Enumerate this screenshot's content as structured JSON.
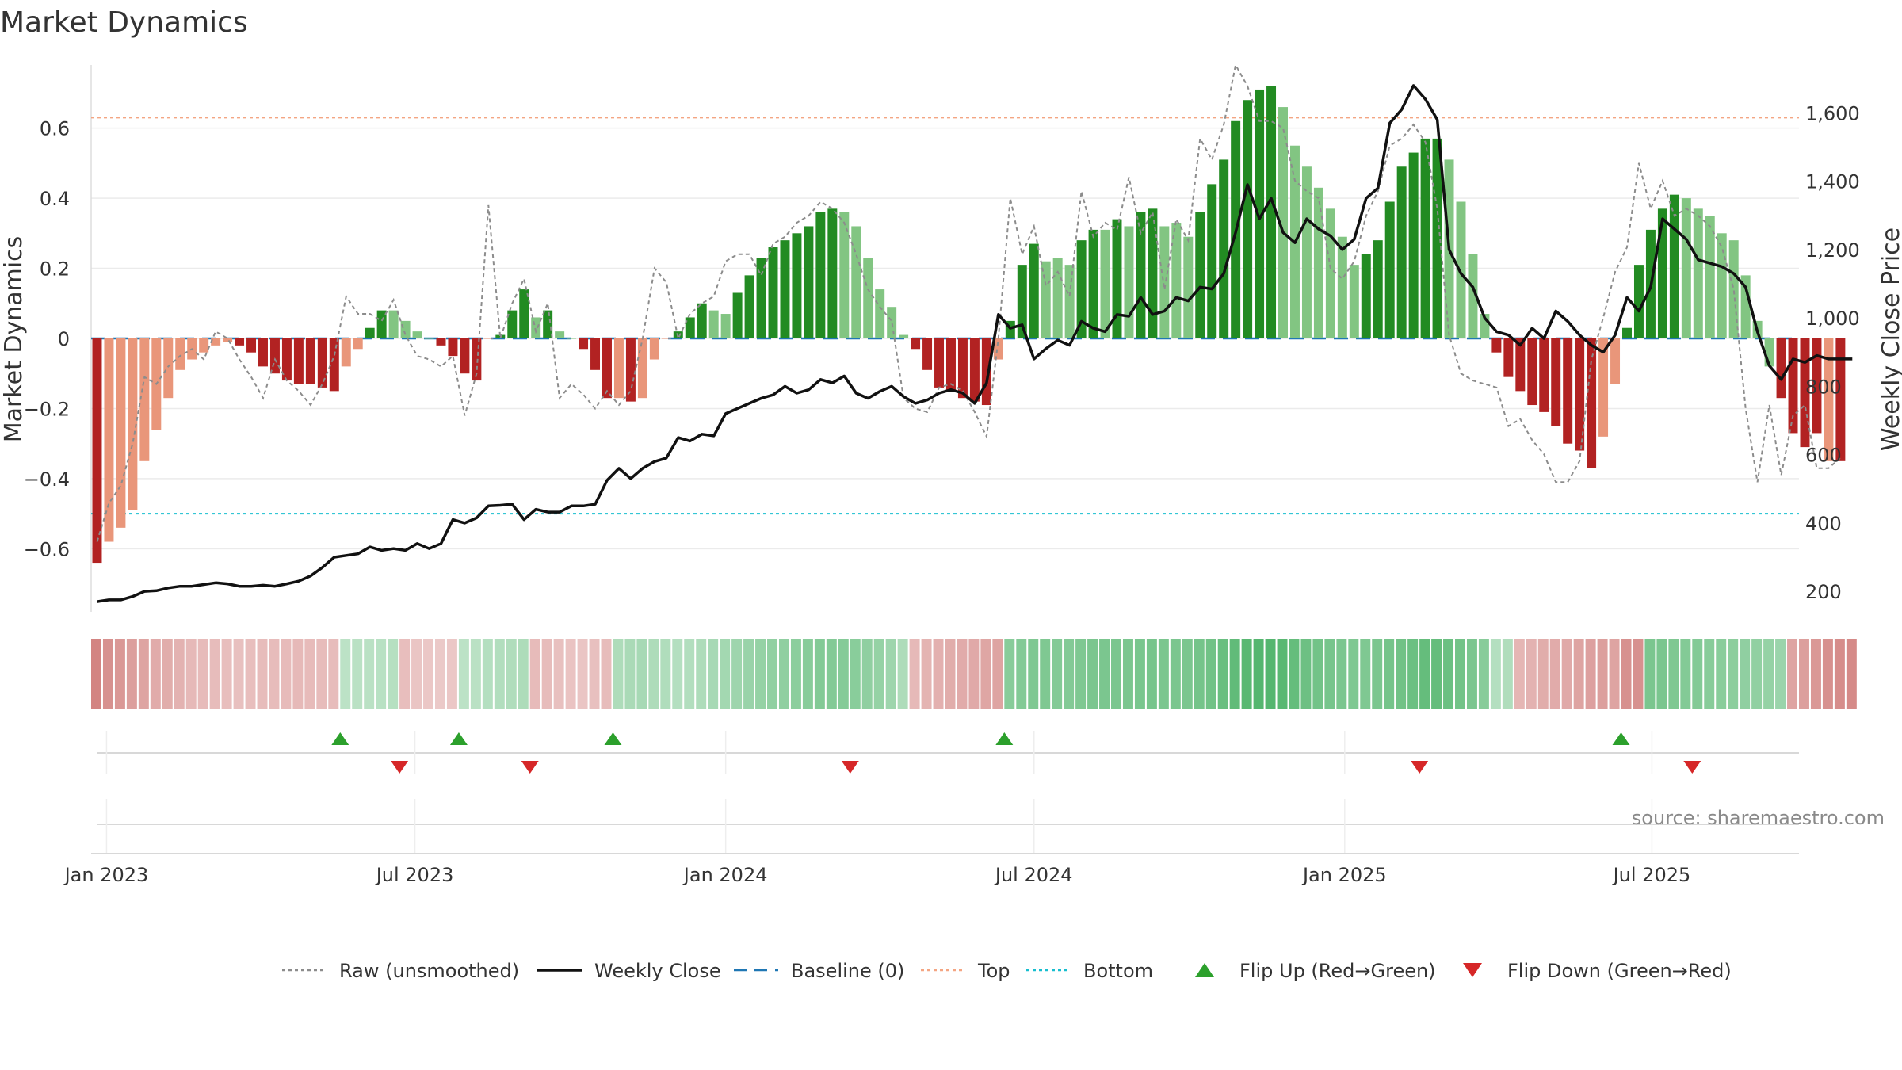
{
  "chart_data": {
    "type": "bar",
    "title": "Market Dynamics",
    "ylabel_left": "Market Dynamics",
    "ylabel_right": "Weekly Close Price",
    "source": "source: sharemaestro.com",
    "ylim_left": [
      -0.78,
      0.78
    ],
    "ylim_right": [
      140,
      1740
    ],
    "yticks_left": [
      -0.6,
      -0.4,
      -0.2,
      0,
      0.2,
      0.4,
      0.6
    ],
    "yticks_left_labels": [
      "−0.6",
      "−0.4",
      "−0.2",
      "0",
      "0.2",
      "0.4",
      "0.6"
    ],
    "yticks_right": [
      200,
      400,
      600,
      800,
      1000,
      1200,
      1400,
      1600
    ],
    "yticks_right_labels": [
      "200",
      "400",
      "600",
      "800",
      "1,000",
      "1,200",
      "1,400",
      "1,600"
    ],
    "x_ticks": [
      {
        "label": "Jan 2023",
        "week": 1.3
      },
      {
        "label": "Jul 2023",
        "week": 27.3
      },
      {
        "label": "Jan 2024",
        "week": 53.5
      },
      {
        "label": "Jul 2024",
        "week": 79.5
      },
      {
        "label": "Jan 2025",
        "week": 105.7
      },
      {
        "label": "Jul 2025",
        "week": 131.6
      }
    ],
    "top_level": 0.63,
    "bottom_level": -0.5,
    "baseline": 0,
    "weeks": 144,
    "momentum": [
      -0.64,
      -0.58,
      -0.54,
      -0.49,
      -0.35,
      -0.26,
      -0.17,
      -0.09,
      -0.06,
      -0.04,
      -0.02,
      -0.01,
      -0.02,
      -0.04,
      -0.08,
      -0.1,
      -0.12,
      -0.13,
      -0.13,
      -0.14,
      -0.15,
      -0.08,
      -0.03,
      0.03,
      0.08,
      0.08,
      0.05,
      0.02,
      0.0,
      -0.02,
      -0.05,
      -0.1,
      -0.12,
      0.0,
      0.01,
      0.08,
      0.14,
      0.06,
      0.08,
      0.02,
      0.0,
      -0.03,
      -0.09,
      -0.17,
      -0.17,
      -0.18,
      -0.17,
      -0.06,
      0.0,
      0.02,
      0.06,
      0.1,
      0.08,
      0.07,
      0.13,
      0.18,
      0.23,
      0.26,
      0.28,
      0.3,
      0.32,
      0.36,
      0.37,
      0.36,
      0.32,
      0.23,
      0.14,
      0.09,
      0.01,
      -0.03,
      -0.09,
      -0.14,
      -0.15,
      -0.17,
      -0.18,
      -0.19,
      -0.06,
      0.05,
      0.21,
      0.27,
      0.22,
      0.23,
      0.21,
      0.28,
      0.31,
      0.31,
      0.34,
      0.32,
      0.36,
      0.37,
      0.32,
      0.33,
      0.29,
      0.36,
      0.44,
      0.51,
      0.62,
      0.68,
      0.71,
      0.72,
      0.66,
      0.55,
      0.49,
      0.43,
      0.37,
      0.29,
      0.21,
      0.24,
      0.28,
      0.39,
      0.49,
      0.53,
      0.57,
      0.57,
      0.51,
      0.39,
      0.24,
      0.07,
      -0.04,
      -0.11,
      -0.15,
      -0.19,
      -0.21,
      -0.25,
      -0.3,
      -0.32,
      -0.37,
      -0.28,
      -0.13,
      0.03,
      0.21,
      0.31,
      0.37,
      0.41,
      0.4,
      0.37,
      0.35,
      0.3,
      0.28,
      0.18,
      0.05,
      -0.08,
      -0.17,
      -0.27,
      -0.31,
      -0.27,
      -0.35,
      -0.35
    ],
    "colors": [
      "dark-red",
      "light-red",
      "light-red",
      "light-red",
      "light-red",
      "light-red",
      "light-red",
      "light-red",
      "light-red",
      "light-red",
      "light-red",
      "light-red",
      "dark-red",
      "dark-red",
      "dark-red",
      "dark-red",
      "dark-red",
      "dark-red",
      "dark-red",
      "dark-red",
      "dark-red",
      "light-red",
      "light-red",
      "dark-green",
      "dark-green",
      "light-green",
      "light-green",
      "light-green",
      "light-green",
      "dark-red",
      "dark-red",
      "dark-red",
      "dark-red",
      "light-red",
      "dark-green",
      "dark-green",
      "dark-green",
      "light-green",
      "dark-green",
      "light-green",
      "light-green",
      "dark-red",
      "dark-red",
      "dark-red",
      "light-red",
      "dark-red",
      "light-red",
      "light-red",
      "light-red",
      "dark-green",
      "dark-green",
      "dark-green",
      "light-green",
      "light-green",
      "dark-green",
      "dark-green",
      "dark-green",
      "dark-green",
      "dark-green",
      "dark-green",
      "dark-green",
      "dark-green",
      "dark-green",
      "light-green",
      "light-green",
      "light-green",
      "light-green",
      "light-green",
      "light-green",
      "dark-red",
      "dark-red",
      "dark-red",
      "dark-red",
      "dark-red",
      "dark-red",
      "dark-red",
      "light-red",
      "dark-green",
      "dark-green",
      "dark-green",
      "light-green",
      "light-green",
      "light-green",
      "dark-green",
      "dark-green",
      "light-green",
      "dark-green",
      "light-green",
      "dark-green",
      "dark-green",
      "light-green",
      "light-green",
      "light-green",
      "dark-green",
      "dark-green",
      "dark-green",
      "dark-green",
      "dark-green",
      "dark-green",
      "dark-green",
      "light-green",
      "light-green",
      "light-green",
      "light-green",
      "light-green",
      "light-green",
      "light-green",
      "dark-green",
      "dark-green",
      "dark-green",
      "dark-green",
      "dark-green",
      "dark-green",
      "dark-green",
      "light-green",
      "light-green",
      "light-green",
      "light-green",
      "dark-red",
      "dark-red",
      "dark-red",
      "dark-red",
      "dark-red",
      "dark-red",
      "dark-red",
      "dark-red",
      "dark-red",
      "light-red",
      "light-red",
      "dark-green",
      "dark-green",
      "dark-green",
      "dark-green",
      "dark-green",
      "light-green",
      "light-green",
      "light-green",
      "light-green",
      "light-green",
      "light-green",
      "light-green",
      "light-green",
      "dark-red",
      "dark-red",
      "dark-red",
      "dark-red",
      "light-red",
      "dark-red",
      "light-red"
    ],
    "raw": [
      -0.58,
      -0.47,
      -0.42,
      -0.3,
      -0.11,
      -0.13,
      -0.08,
      -0.05,
      -0.03,
      -0.06,
      0.02,
      0.0,
      -0.06,
      -0.11,
      -0.17,
      -0.06,
      -0.12,
      -0.15,
      -0.19,
      -0.13,
      -0.05,
      0.12,
      0.07,
      0.07,
      0.05,
      0.11,
      0.01,
      -0.05,
      -0.06,
      -0.08,
      -0.05,
      -0.22,
      -0.1,
      0.38,
      0.0,
      0.1,
      0.17,
      0.02,
      0.1,
      -0.17,
      -0.13,
      -0.16,
      -0.2,
      -0.15,
      -0.19,
      -0.15,
      0.0,
      0.2,
      0.16,
      0.0,
      0.07,
      0.1,
      0.12,
      0.22,
      0.24,
      0.24,
      0.18,
      0.27,
      0.29,
      0.33,
      0.35,
      0.39,
      0.37,
      0.33,
      0.24,
      0.14,
      0.09,
      0.05,
      -0.17,
      -0.2,
      -0.21,
      -0.14,
      -0.13,
      -0.15,
      -0.21,
      -0.28,
      0.0,
      0.4,
      0.24,
      0.32,
      0.15,
      0.19,
      0.12,
      0.42,
      0.29,
      0.33,
      0.31,
      0.46,
      0.3,
      0.36,
      0.14,
      0.34,
      0.28,
      0.57,
      0.51,
      0.61,
      0.78,
      0.72,
      0.62,
      0.62,
      0.6,
      0.45,
      0.42,
      0.4,
      0.2,
      0.17,
      0.22,
      0.35,
      0.42,
      0.55,
      0.57,
      0.61,
      0.56,
      0.37,
      0.01,
      -0.1,
      -0.12,
      -0.13,
      -0.14,
      -0.25,
      -0.23,
      -0.29,
      -0.33,
      -0.41,
      -0.41,
      -0.35,
      -0.06,
      0.06,
      0.19,
      0.26,
      0.5,
      0.37,
      0.45,
      0.35,
      0.37,
      0.35,
      0.32,
      0.26,
      0.14,
      -0.2,
      -0.41,
      -0.19,
      -0.39,
      -0.22,
      -0.19,
      -0.37,
      -0.37,
      -0.34
    ],
    "close": [
      170,
      175,
      175,
      185,
      200,
      202,
      210,
      215,
      215,
      220,
      225,
      222,
      215,
      215,
      218,
      215,
      222,
      230,
      245,
      270,
      300,
      305,
      310,
      330,
      320,
      325,
      320,
      340,
      325,
      340,
      410,
      400,
      415,
      450,
      452,
      455,
      410,
      440,
      432,
      432,
      450,
      450,
      455,
      525,
      560,
      530,
      560,
      580,
      590,
      650,
      640,
      660,
      655,
      720,
      735,
      750,
      765,
      775,
      800,
      780,
      790,
      820,
      810,
      830,
      780,
      765,
      785,
      800,
      770,
      750,
      760,
      780,
      790,
      780,
      750,
      810,
      1010,
      970,
      980,
      880,
      910,
      935,
      920,
      990,
      970,
      960,
      1010,
      1005,
      1060,
      1010,
      1020,
      1060,
      1050,
      1090,
      1085,
      1130,
      1250,
      1390,
      1290,
      1350,
      1250,
      1220,
      1290,
      1260,
      1240,
      1200,
      1230,
      1350,
      1380,
      1570,
      1610,
      1680,
      1640,
      1580,
      1200,
      1130,
      1090,
      1000,
      960,
      950,
      920,
      970,
      940,
      1020,
      990,
      950,
      920,
      900,
      950,
      1060,
      1020,
      1090,
      1290,
      1260,
      1230,
      1170,
      1160,
      1150,
      1130,
      1090,
      960,
      860,
      820,
      880,
      870,
      890,
      880,
      880,
      880
    ],
    "heat_strip": [
      0.7,
      0.6,
      0.55,
      0.5,
      0.45,
      0.4,
      0.38,
      0.35,
      0.3,
      0.28,
      0.26,
      0.25,
      0.24,
      0.25,
      0.26,
      0.27,
      0.28,
      0.29,
      0.28,
      0.27,
      0.26,
      0.2,
      0.21,
      0.22,
      0.23,
      0.24,
      0.25,
      0.2,
      0.18,
      0.17,
      0.18,
      0.2,
      0.22,
      0.25,
      0.26,
      0.28,
      0.3,
      0.28,
      0.27,
      0.24,
      0.22,
      0.2,
      0.24,
      0.27,
      0.3,
      0.32,
      0.33,
      0.3,
      0.28,
      0.25,
      0.27,
      0.3,
      0.33,
      0.36,
      0.4,
      0.43,
      0.45,
      0.48,
      0.5,
      0.52,
      0.55,
      0.57,
      0.58,
      0.56,
      0.54,
      0.5,
      0.45,
      0.4,
      0.3,
      0.3,
      0.33,
      0.36,
      0.38,
      0.4,
      0.42,
      0.44,
      0.45,
      0.55,
      0.58,
      0.6,
      0.6,
      0.58,
      0.57,
      0.6,
      0.62,
      0.62,
      0.63,
      0.62,
      0.64,
      0.65,
      0.63,
      0.63,
      0.62,
      0.66,
      0.7,
      0.75,
      0.8,
      0.85,
      0.88,
      0.88,
      0.85,
      0.78,
      0.72,
      0.68,
      0.65,
      0.62,
      0.6,
      0.6,
      0.62,
      0.66,
      0.7,
      0.74,
      0.78,
      0.78,
      0.74,
      0.68,
      0.62,
      0.55,
      0.25,
      0.28,
      0.32,
      0.35,
      0.38,
      0.4,
      0.42,
      0.45,
      0.48,
      0.5,
      0.45,
      0.6,
      0.6,
      0.62,
      0.62,
      0.6,
      0.58,
      0.57,
      0.55,
      0.54,
      0.52,
      0.5,
      0.48,
      0.45,
      0.42,
      0.45,
      0.5,
      0.55,
      0.6,
      0.62,
      0.65
    ],
    "heat_strip_sign": [
      "r",
      "r",
      "r",
      "r",
      "r",
      "r",
      "r",
      "r",
      "r",
      "r",
      "r",
      "r",
      "r",
      "r",
      "r",
      "r",
      "r",
      "r",
      "r",
      "r",
      "r",
      "g",
      "g",
      "g",
      "g",
      "g",
      "r",
      "r",
      "r",
      "r",
      "r",
      "g",
      "g",
      "g",
      "g",
      "g",
      "g",
      "r",
      "r",
      "r",
      "r",
      "r",
      "r",
      "r",
      "g",
      "g",
      "g",
      "g",
      "g",
      "g",
      "g",
      "g",
      "g",
      "g",
      "g",
      "g",
      "g",
      "g",
      "g",
      "g",
      "g",
      "g",
      "g",
      "g",
      "g",
      "g",
      "g",
      "g",
      "g",
      "r",
      "r",
      "r",
      "r",
      "r",
      "r",
      "r",
      "r",
      "g",
      "g",
      "g",
      "g",
      "g",
      "g",
      "g",
      "g",
      "g",
      "g",
      "g",
      "g",
      "g",
      "g",
      "g",
      "g",
      "g",
      "g",
      "g",
      "g",
      "g",
      "g",
      "g",
      "g",
      "g",
      "g",
      "g",
      "g",
      "g",
      "g",
      "g",
      "g",
      "g",
      "g",
      "g",
      "g",
      "g",
      "g",
      "g",
      "g",
      "g",
      "g",
      "g",
      "r",
      "r",
      "r",
      "r",
      "r",
      "r",
      "r",
      "r",
      "r",
      "r",
      "r",
      "g",
      "g",
      "g",
      "g",
      "g",
      "g",
      "g",
      "g",
      "g",
      "g",
      "g",
      "g",
      "r",
      "r",
      "r",
      "r",
      "r",
      "r",
      "r",
      "r"
    ],
    "flip_up_weeks": [
      21,
      31,
      44,
      77,
      129
    ],
    "flip_down_weeks": [
      26,
      37,
      64,
      112,
      135
    ],
    "legend": [
      {
        "label": "Raw (unsmoothed)",
        "style": "dotted",
        "color": "#8c8c8c"
      },
      {
        "label": "Weekly Close",
        "style": "solid",
        "color": "#111111"
      },
      {
        "label": "Baseline (0)",
        "style": "dashed",
        "color": "#1f77b4"
      },
      {
        "label": "Top",
        "style": "dotted",
        "color": "#f4a582"
      },
      {
        "label": "Bottom",
        "style": "dotted",
        "color": "#17becf"
      },
      {
        "label": "Flip Up (Red→Green)",
        "style": "triangle-up",
        "color": "#2ca02c"
      },
      {
        "label": "Flip Down (Green→Red)",
        "style": "triangle-down",
        "color": "#d62728"
      }
    ],
    "grid": true,
    "legend_position": "bottom-center",
    "palette": {
      "dark-green": "#228b22",
      "light-green": "#82c582",
      "dark-red": "#b22222",
      "light-red": "#e9967a",
      "strip-green": "#34a853",
      "strip-red": "#c0504d"
    }
  }
}
